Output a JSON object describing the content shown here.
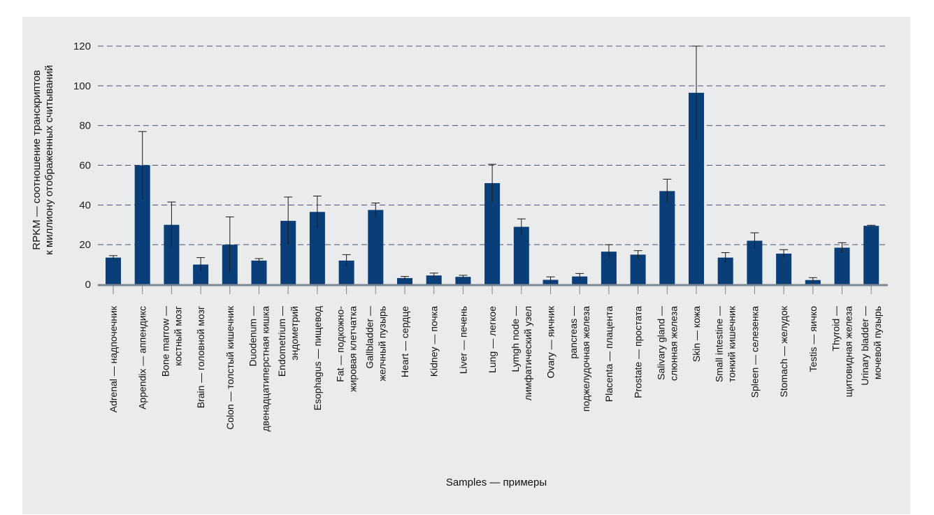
{
  "chart_data": {
    "type": "bar",
    "title": "",
    "xlabel": "Samples — примеры",
    "ylabel": [
      "RPKM — соотношение транскриптов",
      "к миллиону отображенных считываний"
    ],
    "ylim": [
      0,
      120
    ],
    "yticks": [
      0,
      20,
      40,
      60,
      80,
      100,
      120
    ],
    "grid": true,
    "colors": {
      "bar": "#0a3e78",
      "error": "#1a1a1a",
      "grid": "#4a5670",
      "axis": "#7d8590",
      "panel": "#e9ebec"
    },
    "categories": [
      [
        "Adrenal — надпочечник"
      ],
      [
        "Appendix — аппендикс"
      ],
      [
        "Bone marrow —",
        "костный мозг"
      ],
      [
        "Brain — головной мозг"
      ],
      [
        "Colon — толстый кишечник"
      ],
      [
        "Duodenum —",
        "двенадцатиперстная кишка"
      ],
      [
        "Endometrium —",
        "эндометрий"
      ],
      [
        "Esophagus — пищевод"
      ],
      [
        "Fat — подкожно-",
        "жировая клетчатка"
      ],
      [
        "Gallbladder —",
        "желчный пузырь"
      ],
      [
        "Heart — сердце"
      ],
      [
        "Kidney — почка"
      ],
      [
        "Liver — печень"
      ],
      [
        "Lung — легкое"
      ],
      [
        "Lymgh node —",
        "лимфатический узел"
      ],
      [
        "Ovary — яичник"
      ],
      [
        "pancreas —",
        "поджелудочная железа"
      ],
      [
        "Placenta — плацента"
      ],
      [
        "Prostate — простата"
      ],
      [
        "Salivary gland —",
        "слюнная железа"
      ],
      [
        "Skin — кожа"
      ],
      [
        "Small intestine —",
        "тонкий кишечник"
      ],
      [
        "Spleen — селезенка"
      ],
      [
        "Stomach — желудок"
      ],
      [
        "Testis — яичко"
      ],
      [
        "Thyroid —",
        "щитовидная железа"
      ],
      [
        "Urinary bladder —",
        "мочевой пузырь"
      ]
    ],
    "values": [
      13.5,
      60,
      30,
      10,
      20,
      12,
      32,
      36.5,
      12,
      37.5,
      3.2,
      4.5,
      3.8,
      51,
      29,
      2.3,
      4,
      16.5,
      15,
      47,
      96.5,
      13.5,
      22,
      15.5,
      2.2,
      18.5,
      29.5
    ],
    "error": [
      1,
      17,
      11.5,
      3.5,
      14,
      1,
      12,
      8,
      3,
      3.5,
      0.8,
      1.2,
      0.8,
      9.5,
      4,
      1.5,
      1.5,
      3.5,
      2,
      6,
      23.5,
      2.5,
      4,
      2,
      1.2,
      2.5,
      0.3
    ]
  }
}
